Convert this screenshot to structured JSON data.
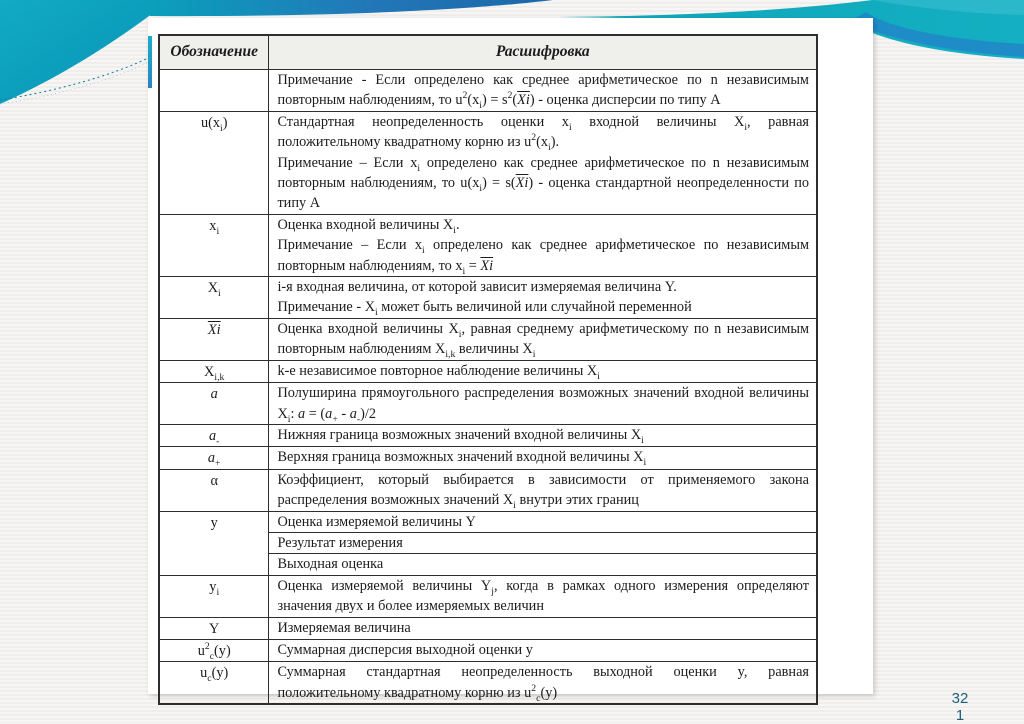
{
  "slide": {
    "page_number_top": "32",
    "page_number_bottom": "1"
  },
  "colors": {
    "teal_swoosh": "#0fa6ba",
    "teal_light": "#2ab5cd",
    "blue_band": "#1e78bc",
    "page_number_text": "#1f6078",
    "table_border": "#2e2e2e",
    "header_fill": "#efefec",
    "panel_background": "#ffffff"
  },
  "table": {
    "headers": [
      "Обозначение",
      "Расшифровка"
    ],
    "rows": [
      {
        "sign": "",
        "paras": [
          "Примечание - Если  определено как среднее арифметическое по n независимым повторным наблюдениям, то u^{2}(x_{i}) = s^{2}(~{Xi}) - оценка дисперсии по типу А"
        ]
      },
      {
        "sign": "u(x_{i})",
        "paras": [
          "Стандартная неопределенность оценки x_{i} входной величины X_{i}, равная положительному квадратному корню из u^{2}(x_{i}).",
          "Примечание – Если x_{i} определено как среднее арифметическое по  n независимым повторным наблюдениям, то u(x_{i}) = s(~{Xi}) - оценка стандартной неопределенности по типу А"
        ]
      },
      {
        "sign": "x_{i}",
        "paras": [
          "Оценка входной величины X_{i}.",
          "Примечание – Если x_{i} определено как среднее арифметическое по независимым повторным наблюдениям, то x_{i} = ~{Xi}"
        ]
      },
      {
        "sign": "X_{i}",
        "paras": [
          "i-я входная величина, от которой зависит измеряемая величина Y.",
          "Примечание - X_{i} может быть величиной или случайной переменной"
        ]
      },
      {
        "sign": "~{Xi}",
        "paras": [
          "Оценка входной величины X_{i}, равная среднему арифметическому по n независимым повторным наблюдениям X_{i,k} величины X_{i}"
        ]
      },
      {
        "sign": "X_{i,k}",
        "paras": [
          "k-е независимое повторное наблюдение величины X_{i}"
        ]
      },
      {
        "sign": "*{a}",
        "paras": [
          "Полуширина прямоугольного распределения возможных значений входной величины X_{i}: *{a} = (*{a}_{+} - *{a}_{-})/2"
        ]
      },
      {
        "sign": "*{a}_{-}",
        "paras": [
          "Нижняя граница возможных значений входной величины X_{i}"
        ]
      },
      {
        "sign": "*{a}_{+}",
        "paras": [
          "Верхняя граница возможных значений входной величины X_{i}"
        ]
      },
      {
        "sign": "α",
        "paras": [
          "Коэффициент, который выбирается в зависимости от применяемого закона распределения возможных значений X_{i} внутри этих границ"
        ]
      },
      {
        "sign": "y",
        "subrows": [
          "Оценка измеряемой величины Y",
          "Результат измерения",
          "Выходная оценка"
        ]
      },
      {
        "sign": "y_{i}",
        "paras": [
          "Оценка измеряемой величины Y_{j}, когда в рамках одного измерения определяют значения двух и более измеряемых величин"
        ]
      },
      {
        "sign": "Y",
        "paras": [
          "Измеряемая величина"
        ]
      },
      {
        "sign": "u^{2}_{c}(y)",
        "paras": [
          "Суммарная дисперсия выходной оценки y"
        ]
      },
      {
        "sign": "u_{c}(y)",
        "paras": [
          "Суммарная стандартная неопределенность выходной оценки y, равная положительному квадратному корню из u^{2}_{c}(y)"
        ]
      }
    ]
  }
}
